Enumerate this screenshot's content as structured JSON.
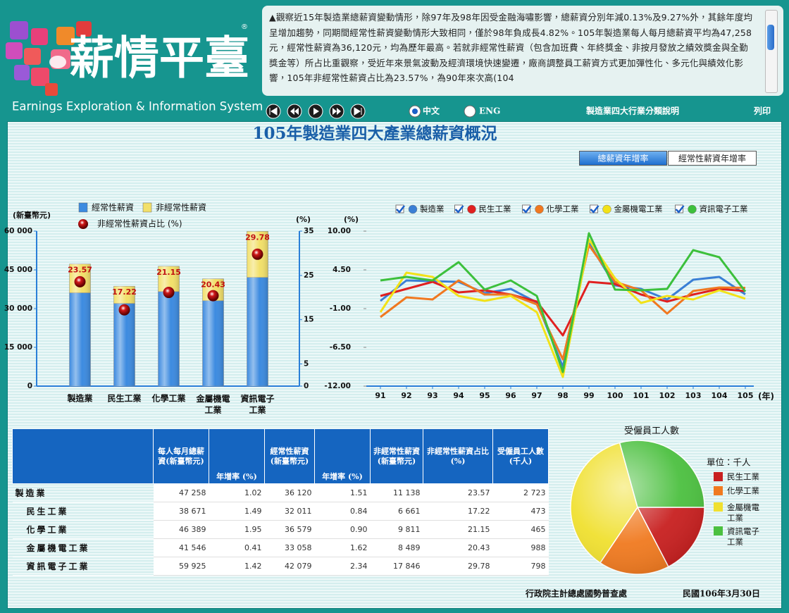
{
  "header": {
    "logo_title": "薪情平臺",
    "logo_subtitle": "Earnings Exploration & Information System",
    "marquee": "▲觀察近15年製造業總薪資變動情形，除97年及98年因受金融海嘯影響，總薪資分別年減0.13%及9.27%外，其餘年度均呈增加趨勢，同期間經常性薪資變動情形大致相同，僅於98年負成長4.82%。105年製造業每人每月總薪資平均為47,258元，經常性薪資為36,120元，均為歷年最高。若就非經常性薪資（包含加班費、年終獎金、非按月發放之績效獎金與全勤獎金等）所占比重觀察，受近年來景氣波動及經濟環境快速變遷，廠商調整員工薪資方式更加彈性化、多元化與績效化影響，105年非經常性薪資占比為23.57%，為90年來次高(104"
  },
  "nav": {
    "lang_zh": "中文",
    "lang_en": "ENG",
    "link_info": "製造業四大行業分類說明",
    "link_print": "列印"
  },
  "title": "105年製造業四大產業總薪資概況",
  "tabs": [
    "總薪資年增率",
    "經常性薪資年增率"
  ],
  "chart_data": [
    {
      "type": "bar",
      "stacked": true,
      "y_label": "(新臺幣元)",
      "y2_label": "(%)",
      "categories": [
        "製造業",
        "民生工業",
        "化學工業",
        "金屬機電工業",
        "資訊電子工業"
      ],
      "series": [
        {
          "name": "經常性薪資",
          "color": "#3d8be0",
          "values": [
            36120,
            32011,
            36579,
            33058,
            42079
          ]
        },
        {
          "name": "非經常性薪資",
          "color": "#f2e06a",
          "values": [
            11138,
            6661,
            9811,
            8489,
            17846
          ]
        },
        {
          "name": "非經常性薪資占比 (%)",
          "color": "#d01818",
          "axis": "y2",
          "values": [
            23.57,
            17.22,
            21.15,
            20.43,
            29.78
          ]
        }
      ],
      "ylim": [
        0,
        60000
      ],
      "yticks": [
        0,
        {
          "value": 15000,
          "label": "15 000"
        },
        {
          "value": 30000,
          "label": "30 000"
        },
        {
          "value": 45000,
          "label": "45 000"
        },
        {
          "value": 60000,
          "label": "60 000"
        }
      ],
      "y2lim": [
        0,
        35
      ],
      "y2ticks": [
        0,
        5,
        15,
        25,
        35
      ]
    },
    {
      "type": "line",
      "y_label": "(%)",
      "x_label": "(年)",
      "x": [
        91,
        92,
        93,
        94,
        95,
        96,
        97,
        98,
        99,
        100,
        101,
        102,
        103,
        104,
        105
      ],
      "xlim": [
        91,
        105
      ],
      "xticks": [
        91,
        92,
        93,
        94,
        95,
        96,
        97,
        98,
        99,
        100,
        101,
        102,
        103,
        104,
        105
      ],
      "ylim": [
        -12,
        10
      ],
      "yticks": [
        {
          "value": -12,
          "label": "-12.00"
        },
        {
          "value": -6.5,
          "label": "-6.50"
        },
        {
          "value": -1,
          "label": "-1.00"
        },
        {
          "value": 4.5,
          "label": "4.50"
        },
        {
          "value": 10,
          "label": "10.00"
        }
      ],
      "legend": "top",
      "series": [
        {
          "name": "製造業",
          "color": "#3a7fd5",
          "values": [
            0.1,
            3.0,
            2.9,
            2.8,
            1.2,
            1.8,
            -0.13,
            -9.27,
            8.3,
            2.3,
            1.8,
            0.3,
            3.1,
            3.5,
            1.02
          ]
        },
        {
          "name": "民生工業",
          "color": "#e02020",
          "values": [
            0.8,
            1.8,
            2.8,
            1.3,
            1.6,
            1.0,
            0.0,
            -4.8,
            2.8,
            2.5,
            1.0,
            0.0,
            1.0,
            1.8,
            1.49
          ]
        },
        {
          "name": "化學工業",
          "color": "#f07820",
          "values": [
            -2.2,
            0.6,
            0.3,
            3.0,
            1.0,
            1.0,
            -0.4,
            -8.2,
            8.0,
            2.8,
            1.6,
            -1.7,
            1.5,
            2.0,
            1.95
          ]
        },
        {
          "name": "金屬機電工業",
          "color": "#f2e218",
          "values": [
            -1.5,
            4.1,
            3.5,
            0.8,
            0.1,
            0.8,
            -1.5,
            -10.7,
            8.8,
            3.3,
            -0.2,
            0.8,
            0.3,
            1.6,
            0.41
          ]
        },
        {
          "name": "資訊電子工業",
          "color": "#3cc03c",
          "values": [
            3.0,
            3.5,
            3.0,
            5.6,
            1.7,
            3.0,
            0.8,
            -10.0,
            9.7,
            1.7,
            1.6,
            1.8,
            7.3,
            6.3,
            1.42
          ]
        }
      ]
    },
    {
      "type": "pie",
      "title": "受僱員工人數",
      "legend_title": "單位：千人",
      "categories": [
        "民生工業",
        "化學工業",
        "金屬機電工業",
        "資訊電子工業"
      ],
      "values": [
        473,
        465,
        988,
        798
      ],
      "colors": [
        "#c82020",
        "#f07a20",
        "#f0e030",
        "#4cc040"
      ]
    }
  ],
  "table": {
    "header": [
      "每人每月總薪資(新臺幣元)",
      "年增率 (%)",
      "經常性薪資(新臺幣元)",
      "年增率 (%)",
      "非經常性薪資(新臺幣元)",
      "非經常性薪資占比(%)",
      "受僱員工人數(千人)"
    ],
    "rows": [
      [
        "製造業",
        "47 258",
        "1.02",
        "36 120",
        "1.51",
        "11 138",
        "23.57",
        "2 723"
      ],
      [
        "民生工業",
        "38 671",
        "1.49",
        "32 011",
        "0.84",
        "6 661",
        "17.22",
        "473"
      ],
      [
        "化學工業",
        "46 389",
        "1.95",
        "36 579",
        "0.90",
        "9 811",
        "21.15",
        "465"
      ],
      [
        "金屬機電工業",
        "41 546",
        "0.41",
        "33 058",
        "1.62",
        "8 489",
        "20.43",
        "988"
      ],
      [
        "資訊電子工業",
        "59 925",
        "1.42",
        "42 079",
        "2.34",
        "17 846",
        "29.78",
        "798"
      ]
    ]
  },
  "footer": {
    "source": "行政院主計總處國勢普查處",
    "date": "民國106年3月30日"
  }
}
